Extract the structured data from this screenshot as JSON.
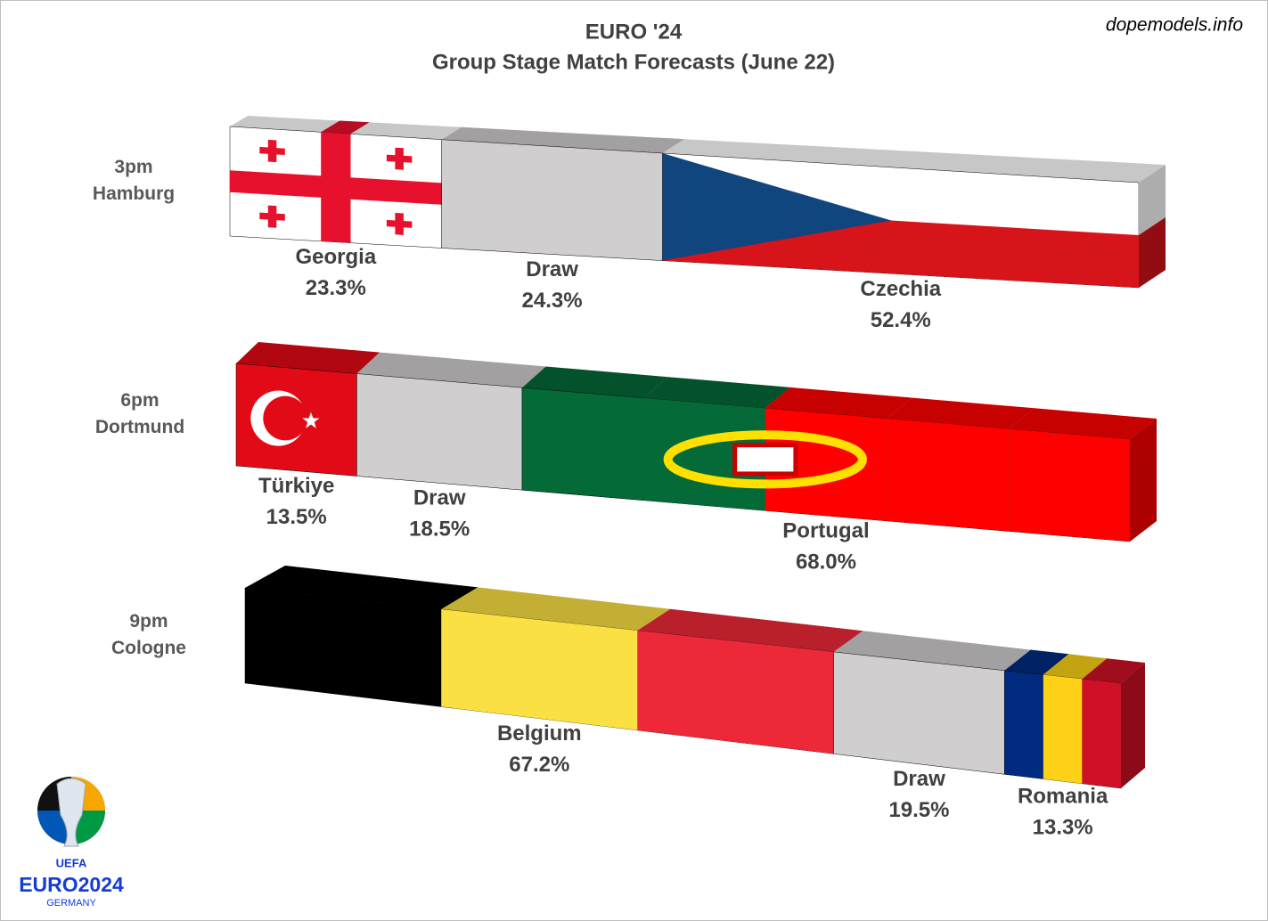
{
  "chart_data": {
    "type": "stacked_bar",
    "title": "EURO '24",
    "subtitle": "Group Stage Match Forecasts (June 22)",
    "source": "dopemodels.info",
    "matches": [
      {
        "time": "3pm",
        "venue": "Hamburg",
        "names": [
          "Georgia",
          "Draw",
          "Czechia"
        ],
        "values": [
          23.3,
          24.3,
          52.4
        ],
        "value_labels": [
          "23.3%",
          "24.3%",
          "52.4%"
        ],
        "patterns": [
          "cross",
          "plain",
          "triangle"
        ],
        "colors": [
          [
            "#ffffff",
            "#e8112d"
          ],
          [
            "#d0cece"
          ],
          [
            "#ffffff",
            "#d7141a",
            "#11457e"
          ]
        ]
      },
      {
        "time": "6pm",
        "venue": "Dortmund",
        "names": [
          "Türkiye",
          "Draw",
          "Portugal"
        ],
        "values": [
          13.5,
          18.5,
          68.0
        ],
        "value_labels": [
          "13.5%",
          "18.5%",
          "68.0%"
        ],
        "patterns": [
          "crescent",
          "plain",
          "emblem"
        ],
        "colors": [
          [
            "#e30a17",
            "#ffffff"
          ],
          [
            "#d0cece"
          ],
          [
            "#046a38",
            "#046a38",
            "#ff0000",
            "#ff0000",
            "#ff0000"
          ]
        ]
      },
      {
        "time": "9pm",
        "venue": "Cologne",
        "names": [
          "Belgium",
          "Draw",
          "Romania"
        ],
        "values": [
          67.2,
          19.5,
          13.3
        ],
        "value_labels": [
          "67.2%",
          "19.5%",
          "13.3%"
        ],
        "patterns": [
          "stripes",
          "plain",
          "stripes"
        ],
        "colors": [
          [
            "#000000",
            "#fae042",
            "#ed2939"
          ],
          [
            "#d0cece"
          ],
          [
            "#002b7f",
            "#fcd116",
            "#ce1126"
          ]
        ]
      }
    ]
  },
  "logo": {
    "org": "UEFA",
    "name": "EURO2024",
    "country": "GERMANY"
  }
}
